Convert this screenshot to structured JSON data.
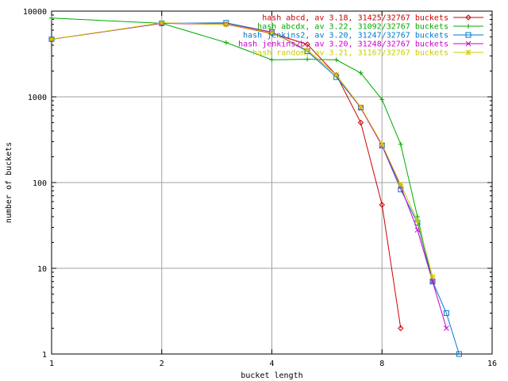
{
  "chart_data": {
    "type": "line",
    "title": "",
    "xlabel": "bucket length",
    "ylabel": "number of buckets",
    "x_scale": "log2",
    "y_scale": "log10",
    "xlim": [
      1,
      16
    ],
    "ylim": [
      1,
      10000
    ],
    "x_ticks": [
      1,
      2,
      4,
      8,
      16
    ],
    "y_ticks": [
      1,
      10,
      100,
      1000,
      10000
    ],
    "grid": true,
    "legend_position": "top-right",
    "series": [
      {
        "name": "hash abcd, av 3.18, 31425/32767 buckets",
        "color": "#cc0000",
        "marker": "diamond",
        "x": [
          1,
          2,
          3,
          4,
          5,
          6,
          7,
          8,
          9
        ],
        "y": [
          4700,
          7200,
          7000,
          5500,
          4100,
          1800,
          500,
          55,
          2
        ]
      },
      {
        "name": "hash abcdx, av 3.22, 31092/32767 buckets",
        "color": "#00aa00",
        "marker": "plus",
        "x": [
          1,
          2,
          3,
          4,
          5,
          6,
          7,
          8,
          9,
          10,
          11
        ],
        "y": [
          8300,
          7200,
          4300,
          2700,
          2750,
          2700,
          1900,
          930,
          280,
          40,
          7
        ]
      },
      {
        "name": "hash jenkins2, av 3.20, 31247/32767 buckets",
        "color": "#0077cc",
        "marker": "square",
        "x": [
          1,
          2,
          3,
          4,
          5,
          6,
          7,
          8,
          9,
          10,
          11,
          12,
          13
        ],
        "y": [
          4700,
          7200,
          7300,
          5700,
          3400,
          1700,
          750,
          270,
          83,
          34,
          7,
          3,
          1
        ]
      },
      {
        "name": "hash jenkins2b, av 3.20, 31248/32767 buckets",
        "color": "#cc00cc",
        "marker": "cross",
        "x": [
          1,
          2,
          3,
          4,
          5,
          6,
          7,
          8,
          9,
          10,
          11,
          12
        ],
        "y": [
          4700,
          7200,
          7100,
          5700,
          3500,
          1800,
          740,
          270,
          90,
          28,
          7,
          2
        ]
      },
      {
        "name": "hash random, av 3.21, 31167/32767 buckets",
        "color": "#cccc00",
        "marker": "star",
        "x": [
          1,
          2,
          3,
          4,
          5,
          6,
          7,
          8,
          9,
          10,
          11
        ],
        "y": [
          4700,
          7300,
          7000,
          5600,
          3500,
          1800,
          760,
          280,
          95,
          36,
          8
        ]
      }
    ]
  }
}
